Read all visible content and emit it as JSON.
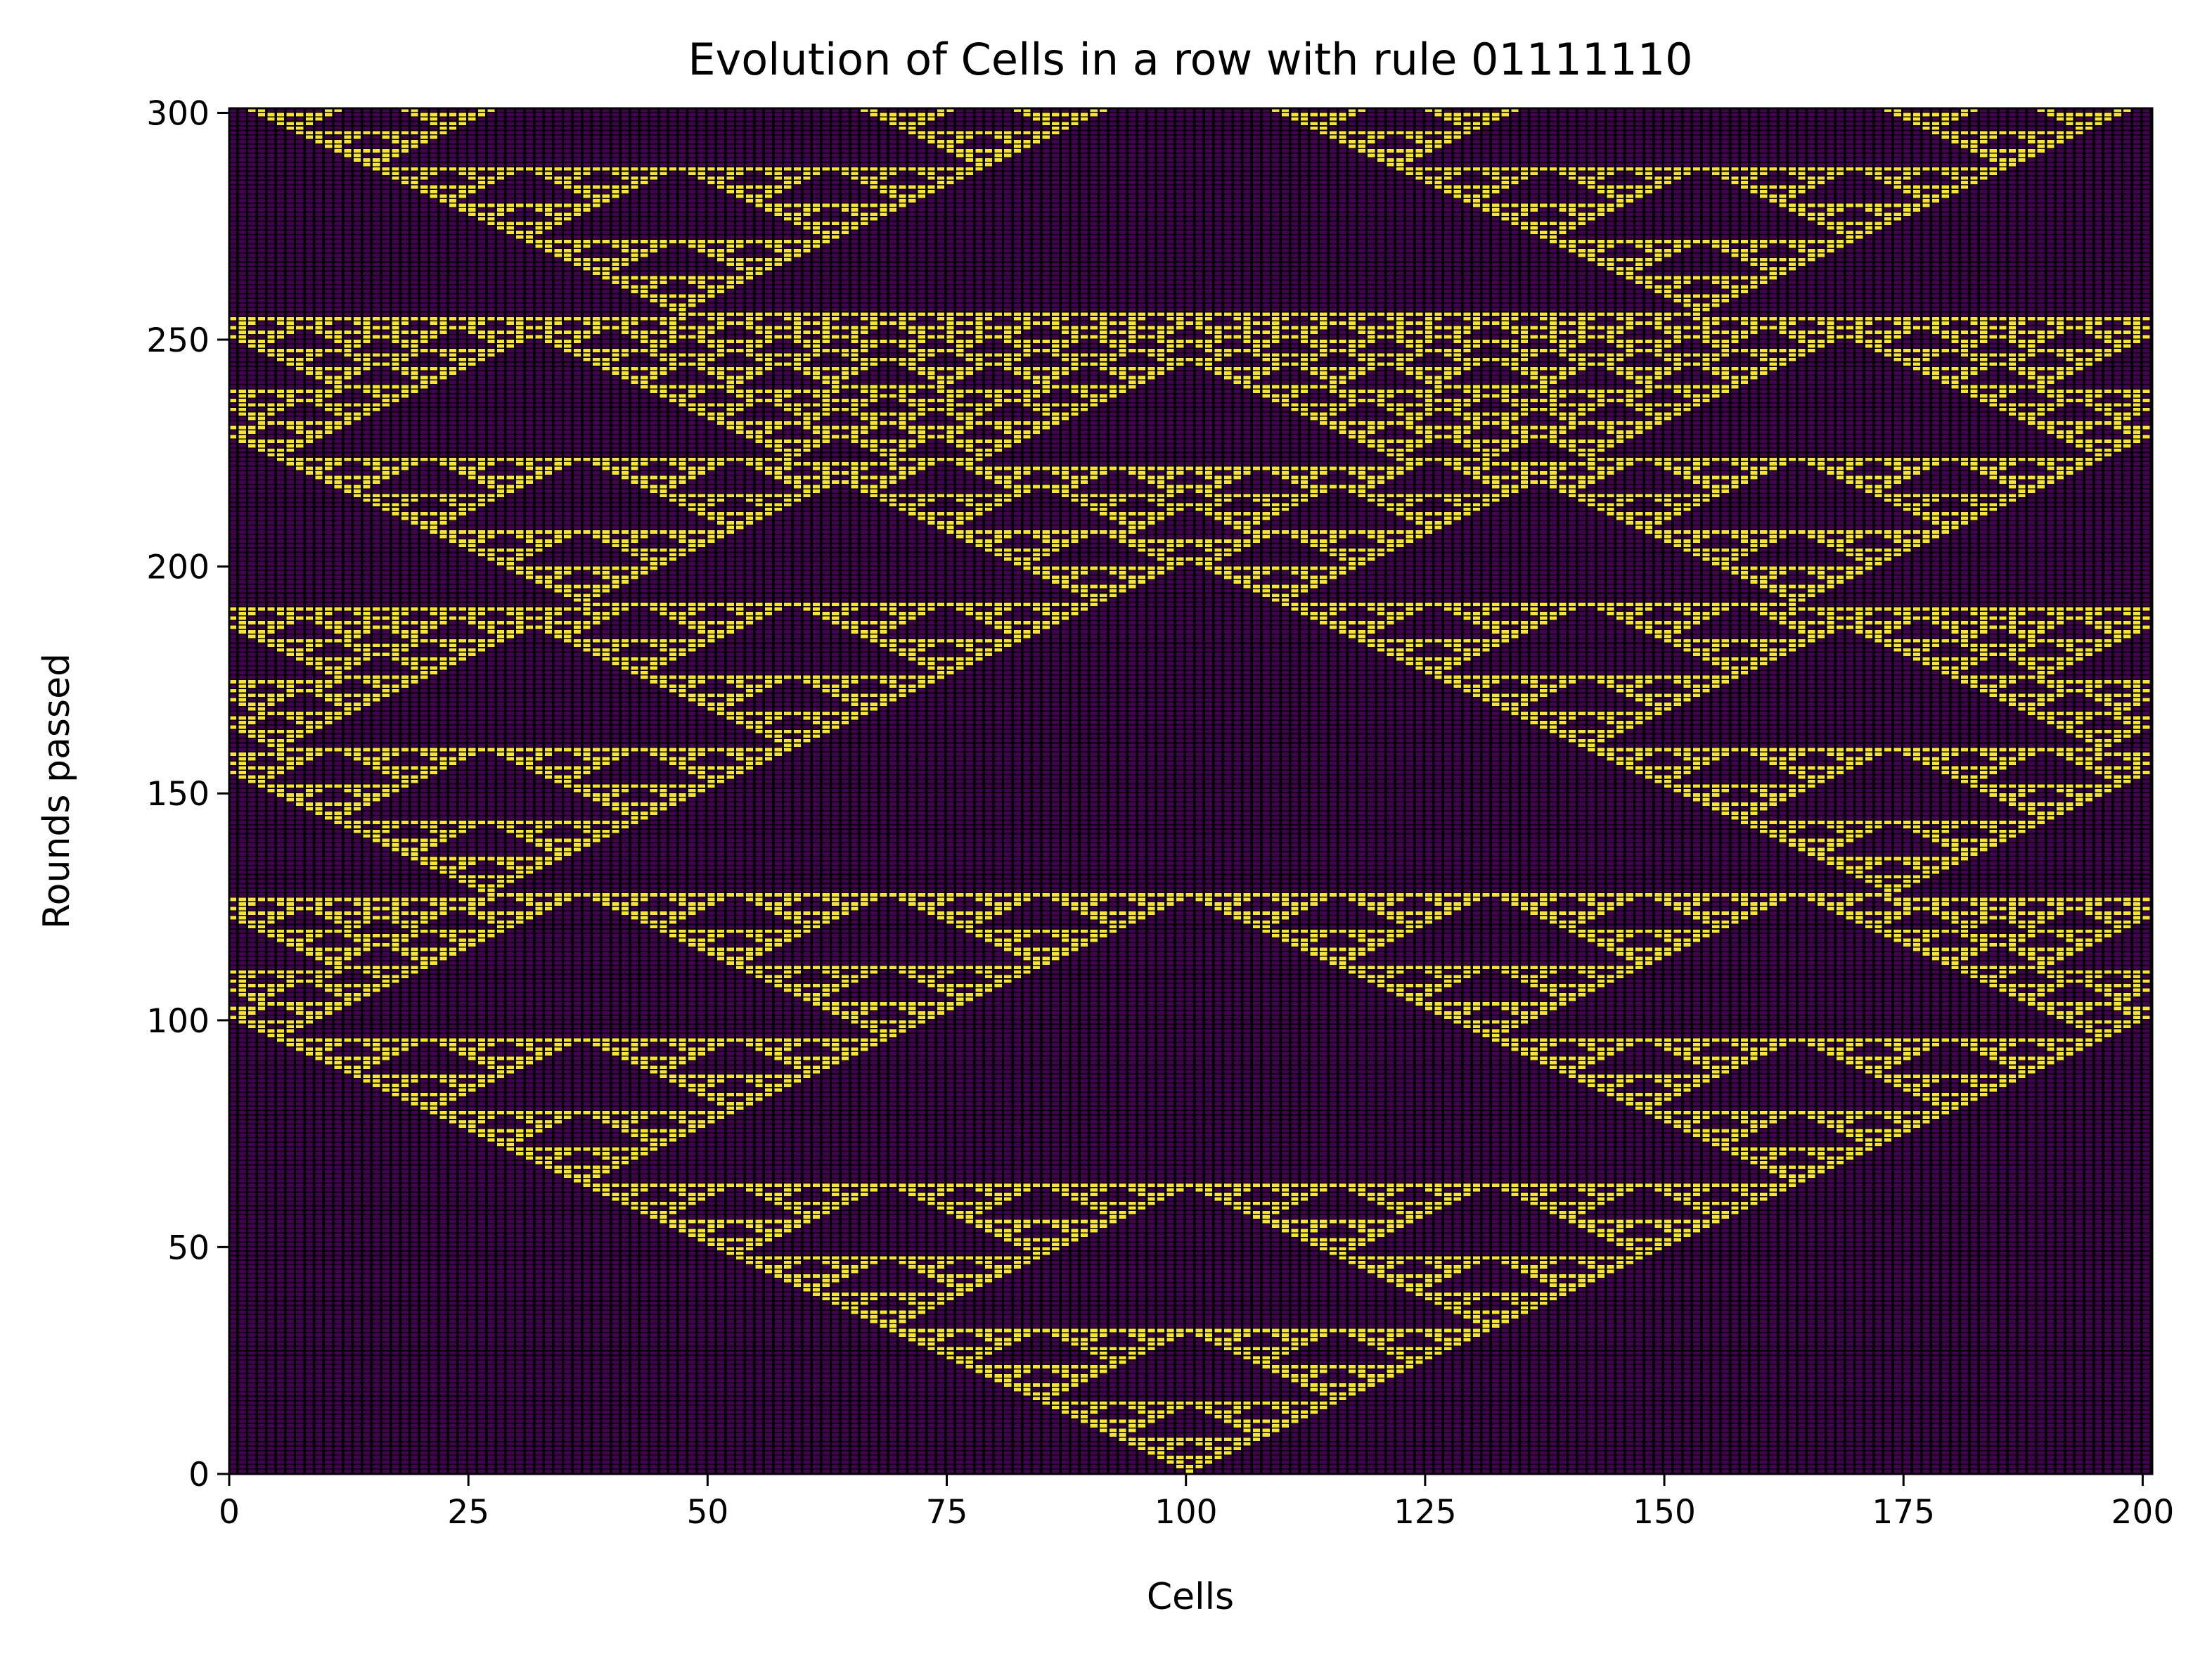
{
  "chart_data": {
    "type": "heatmap",
    "title": "Evolution of Cells in a row with rule 01111110",
    "xlabel": "Cells",
    "ylabel": "Rounds passed",
    "rule_bits": "01111110",
    "rule_number": 126,
    "cells": 201,
    "rounds": 301,
    "initial_live_cell": 100,
    "boundary": "periodic",
    "origin": "lower",
    "xlim": [
      0,
      201
    ],
    "ylim": [
      0,
      301
    ],
    "xticks": [
      0,
      25,
      50,
      75,
      100,
      125,
      150,
      175,
      200
    ],
    "yticks": [
      0,
      50,
      100,
      150,
      200,
      250,
      300
    ],
    "colormap": {
      "dead": "#440154",
      "alive": "#fde725",
      "cell_edge": "#000000"
    },
    "grid": false
  }
}
